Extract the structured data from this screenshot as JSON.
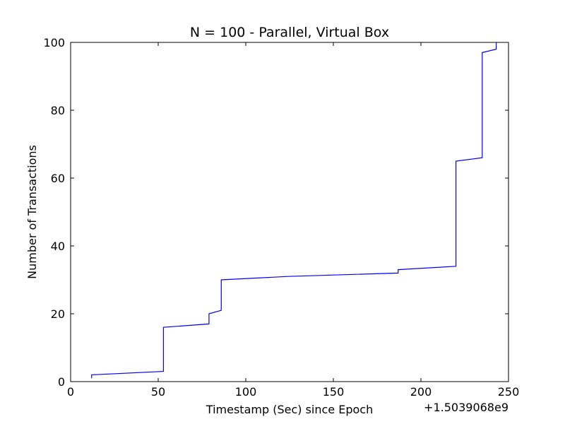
{
  "chart_data": {
    "type": "line",
    "title": "N = 100 - Parallel, Virtual Box",
    "xlabel": "Timestamp (Sec) since Epoch",
    "ylabel": "Number of Transactions",
    "x_offset_label": "+1.5039068e9",
    "xlim": [
      0,
      250
    ],
    "ylim": [
      0,
      100
    ],
    "xticks": [
      0,
      50,
      100,
      150,
      200,
      250
    ],
    "yticks": [
      0,
      20,
      40,
      60,
      80,
      100
    ],
    "grid": false,
    "line_color": "#0000ff",
    "series": [
      {
        "x": [
          12,
          12,
          53,
          53,
          79,
          79,
          86,
          86,
          124,
          187,
          187,
          220,
          220,
          235,
          235,
          243,
          243
        ],
        "y": [
          1,
          2,
          3,
          16,
          17,
          20,
          21,
          30,
          31,
          32,
          33,
          34,
          65,
          66,
          97,
          98,
          100
        ]
      }
    ]
  }
}
